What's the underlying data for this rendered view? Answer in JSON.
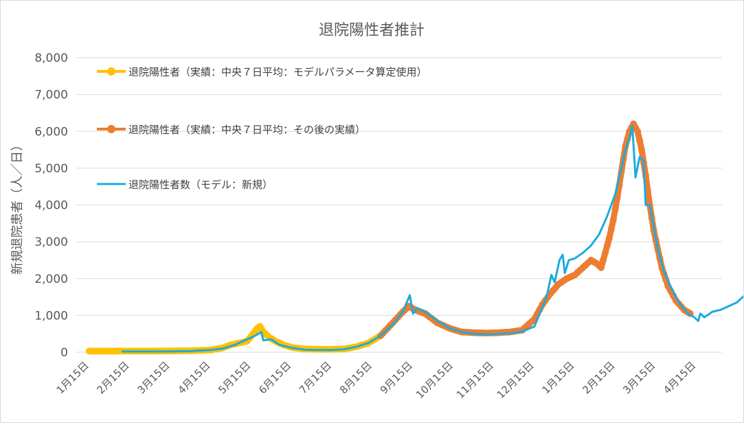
{
  "chart_data": {
    "type": "line",
    "title": "退院陽性者推計",
    "xlabel": "",
    "ylabel": "新規退院患者（人／日）",
    "ylim": [
      0,
      8000
    ],
    "yticks": [
      "0",
      "1,000",
      "2,000",
      "3,000",
      "4,000",
      "5,000",
      "6,000",
      "7,000",
      "8,000"
    ],
    "ytick_values": [
      0,
      1000,
      2000,
      3000,
      4000,
      5000,
      6000,
      7000,
      8000
    ],
    "x_tick_labels": [
      "1月15日",
      "2月15日",
      "3月15日",
      "4月15日",
      "5月15日",
      "6月15日",
      "7月15日",
      "8月15日",
      "9月15日",
      "10月15日",
      "11月15日",
      "12月15日",
      "1月15日",
      "2月15日",
      "3月15日",
      "4月15日"
    ],
    "x_unit": "months since 1月15日 (tick index)",
    "xlim": [
      0,
      16.6
    ],
    "grid": true,
    "legend_position": "top-left",
    "series": [
      {
        "name": "退院陽性者（実績：中央７日平均：モデルパラメータ算定使用）",
        "color": "#FFC000",
        "style": "line-marker",
        "points": [
          [
            0,
            30
          ],
          [
            0.5,
            30
          ],
          [
            1,
            30
          ],
          [
            1.5,
            30
          ],
          [
            2,
            35
          ],
          [
            2.5,
            40
          ],
          [
            3,
            60
          ],
          [
            3.3,
            120
          ],
          [
            3.5,
            200
          ],
          [
            3.7,
            250
          ],
          [
            3.9,
            300
          ],
          [
            4.05,
            500
          ],
          [
            4.15,
            650
          ],
          [
            4.22,
            700
          ],
          [
            4.3,
            550
          ],
          [
            4.45,
            400
          ],
          [
            4.6,
            300
          ],
          [
            4.8,
            200
          ],
          [
            5,
            130
          ],
          [
            5.3,
            90
          ],
          [
            5.6,
            80
          ],
          [
            6,
            80
          ],
          [
            6.3,
            90
          ],
          [
            6.6,
            150
          ],
          [
            6.9,
            250
          ],
          [
            7.2,
            450
          ]
        ]
      },
      {
        "name": "退院陽性者（実績：中央７日平均：その後の実績）",
        "color": "#ED7D31",
        "style": "line-marker",
        "points": [
          [
            7.2,
            450
          ],
          [
            7.5,
            800
          ],
          [
            7.75,
            1100
          ],
          [
            7.9,
            1250
          ],
          [
            8.05,
            1150
          ],
          [
            8.3,
            1050
          ],
          [
            8.6,
            800
          ],
          [
            8.9,
            650
          ],
          [
            9.2,
            550
          ],
          [
            9.5,
            530
          ],
          [
            9.8,
            520
          ],
          [
            10.1,
            530
          ],
          [
            10.4,
            550
          ],
          [
            10.7,
            600
          ],
          [
            11,
            900
          ],
          [
            11.2,
            1300
          ],
          [
            11.4,
            1600
          ],
          [
            11.6,
            1850
          ],
          [
            11.8,
            2000
          ],
          [
            12.0,
            2100
          ],
          [
            12.2,
            2300
          ],
          [
            12.4,
            2500
          ],
          [
            12.55,
            2400
          ],
          [
            12.65,
            2300
          ],
          [
            12.75,
            2700
          ],
          [
            12.85,
            3100
          ],
          [
            12.95,
            3600
          ],
          [
            13.05,
            4200
          ],
          [
            13.15,
            4900
          ],
          [
            13.25,
            5600
          ],
          [
            13.35,
            6000
          ],
          [
            13.45,
            6200
          ],
          [
            13.55,
            6000
          ],
          [
            13.65,
            5500
          ],
          [
            13.75,
            4800
          ],
          [
            13.85,
            4000
          ],
          [
            13.95,
            3300
          ],
          [
            14.05,
            2800
          ],
          [
            14.15,
            2300
          ],
          [
            14.3,
            1800
          ],
          [
            14.5,
            1400
          ],
          [
            14.7,
            1150
          ],
          [
            14.85,
            1050
          ]
        ]
      },
      {
        "name": "退院陽性者数（モデル：新規）",
        "color": "#1AACDE",
        "style": "line",
        "points": [
          [
            0.8,
            20
          ],
          [
            1.5,
            20
          ],
          [
            2,
            20
          ],
          [
            2.5,
            30
          ],
          [
            3,
            60
          ],
          [
            3.3,
            100
          ],
          [
            3.6,
            200
          ],
          [
            3.9,
            350
          ],
          [
            4.1,
            450
          ],
          [
            4.25,
            550
          ],
          [
            4.3,
            320
          ],
          [
            4.5,
            350
          ],
          [
            4.7,
            200
          ],
          [
            5,
            120
          ],
          [
            5.3,
            70
          ],
          [
            5.6,
            60
          ],
          [
            6,
            60
          ],
          [
            6.3,
            80
          ],
          [
            6.6,
            150
          ],
          [
            6.9,
            250
          ],
          [
            7.2,
            450
          ],
          [
            7.5,
            750
          ],
          [
            7.75,
            1100
          ],
          [
            7.92,
            1550
          ],
          [
            8.0,
            1050
          ],
          [
            8.1,
            1200
          ],
          [
            8.3,
            1100
          ],
          [
            8.6,
            850
          ],
          [
            8.9,
            650
          ],
          [
            9.2,
            550
          ],
          [
            9.5,
            500
          ],
          [
            9.8,
            480
          ],
          [
            10.1,
            500
          ],
          [
            10.4,
            520
          ],
          [
            10.7,
            560
          ],
          [
            11,
            700
          ],
          [
            11.15,
            1100
          ],
          [
            11.3,
            1500
          ],
          [
            11.42,
            2100
          ],
          [
            11.5,
            1900
          ],
          [
            11.62,
            2500
          ],
          [
            11.7,
            2650
          ],
          [
            11.75,
            2150
          ],
          [
            11.85,
            2500
          ],
          [
            12.0,
            2550
          ],
          [
            12.2,
            2700
          ],
          [
            12.4,
            2900
          ],
          [
            12.6,
            3200
          ],
          [
            12.8,
            3700
          ],
          [
            13.0,
            4300
          ],
          [
            13.15,
            5000
          ],
          [
            13.25,
            5500
          ],
          [
            13.35,
            5800
          ],
          [
            13.42,
            6150
          ],
          [
            13.5,
            4750
          ],
          [
            13.6,
            5300
          ],
          [
            13.7,
            5200
          ],
          [
            13.75,
            4000
          ],
          [
            13.85,
            4000
          ],
          [
            13.95,
            3400
          ],
          [
            14.05,
            2800
          ],
          [
            14.2,
            2200
          ],
          [
            14.4,
            1700
          ],
          [
            14.6,
            1300
          ],
          [
            14.8,
            1050
          ],
          [
            14.95,
            950
          ],
          [
            15.05,
            850
          ],
          [
            15.1,
            1050
          ],
          [
            15.2,
            950
          ],
          [
            15.4,
            1100
          ],
          [
            15.6,
            1150
          ],
          [
            15.8,
            1250
          ],
          [
            16.0,
            1350
          ],
          [
            16.2,
            1550
          ],
          [
            16.4,
            1800
          ],
          [
            16.6,
            2050
          ]
        ]
      }
    ]
  }
}
